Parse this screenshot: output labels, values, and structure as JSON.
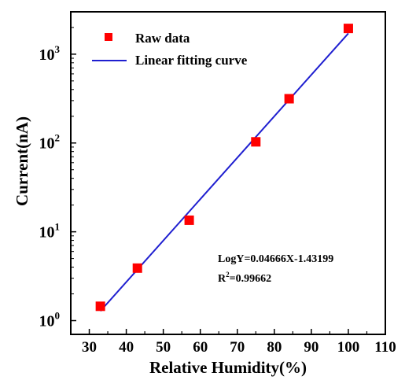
{
  "chart_data": {
    "type": "scatter",
    "title": "",
    "xlabel": "Relative Humidity(%)",
    "ylabel": "Current(nA)",
    "xlim": [
      25,
      110
    ],
    "ylim": [
      0.7,
      3000
    ],
    "yscale": "log",
    "x_ticks": [
      30,
      40,
      50,
      60,
      70,
      80,
      90,
      100,
      110
    ],
    "y_ticks": [
      {
        "value": 1,
        "base": "10",
        "exp": "0"
      },
      {
        "value": 10,
        "base": "10",
        "exp": "1"
      },
      {
        "value": 100,
        "base": "10",
        "exp": "2"
      },
      {
        "value": 1000,
        "base": "10",
        "exp": "3"
      }
    ],
    "grid": false,
    "legend_position": "top-left",
    "series": [
      {
        "name": "Raw data",
        "kind": "scatter",
        "color": "#ff0000",
        "marker": "square",
        "points": [
          {
            "x": 33,
            "y": 1.45
          },
          {
            "x": 43,
            "y": 3.9
          },
          {
            "x": 57,
            "y": 13.5
          },
          {
            "x": 75,
            "y": 103
          },
          {
            "x": 84,
            "y": 315
          },
          {
            "x": 100,
            "y": 1950
          }
        ]
      },
      {
        "name": "Linear fitting curve",
        "kind": "line",
        "color": "#1f1fd0",
        "x_range": [
          33,
          100
        ],
        "slope": 0.04666,
        "intercept": -1.43199
      }
    ],
    "annotations": {
      "equation": "LogY=0.04666X-1.43199",
      "r2_prefix": "R",
      "r2_sup": "2",
      "r2_value": "=0.99662"
    }
  }
}
